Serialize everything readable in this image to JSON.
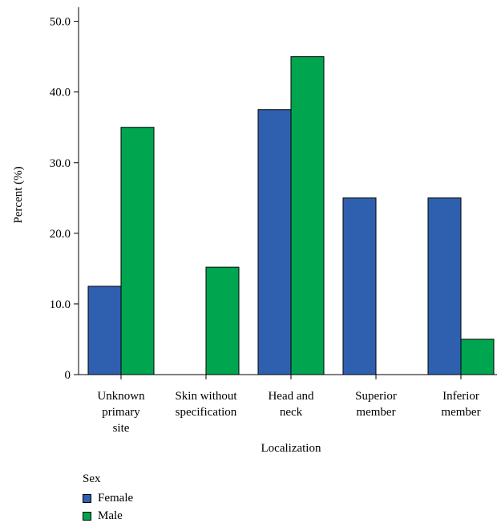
{
  "chart_data": {
    "type": "bar",
    "xlabel": "Localization",
    "ylabel": "Percent (%)",
    "ylim": [
      0,
      52
    ],
    "yticks": [
      0,
      10,
      20,
      30,
      40,
      50
    ],
    "ytick_labels": [
      "0",
      "10.0",
      "20.0",
      "30.0",
      "40.0",
      "50.0"
    ],
    "categories": [
      [
        "Unknown",
        "primary",
        "site"
      ],
      [
        "Skin without",
        "specification"
      ],
      [
        "Head and",
        "neck"
      ],
      [
        "Superior",
        "member"
      ],
      [
        "Inferior",
        "member"
      ]
    ],
    "series": [
      {
        "name": "Female",
        "color": "#2f5faf",
        "values": [
          12.5,
          0,
          37.5,
          25.0,
          25.0
        ]
      },
      {
        "name": "Male",
        "color": "#00a550",
        "values": [
          35.0,
          15.2,
          45.0,
          0,
          5.0
        ]
      }
    ],
    "legend": {
      "title": "Sex",
      "position": "bottom-left"
    },
    "grid": false
  }
}
